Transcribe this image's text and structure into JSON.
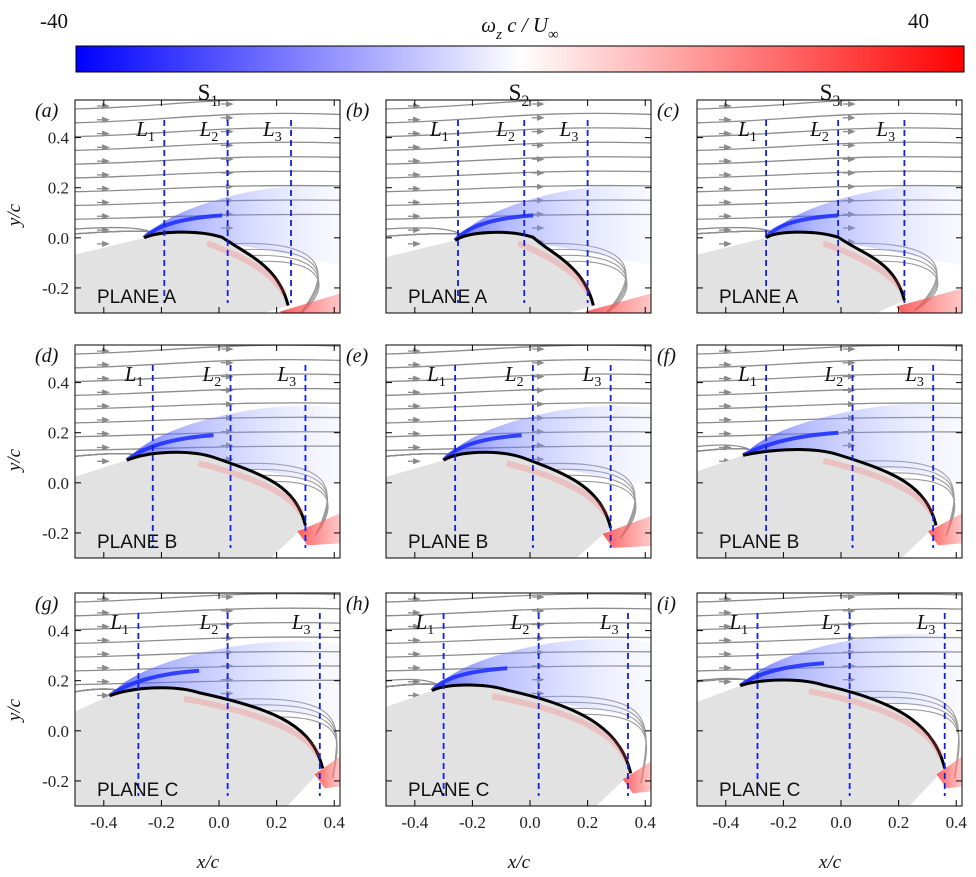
{
  "colorbar": {
    "min_label": "-40",
    "max_label": "40",
    "title_parts": {
      "omega": "ω",
      "z": "z",
      "mid": " c / U",
      "inf": "∞"
    },
    "range": [
      -40,
      40
    ],
    "colors": {
      "low": "#0000ff",
      "mid": "#ffffff",
      "high": "#ff0000"
    }
  },
  "columns": [
    {
      "main": "S",
      "sub": "1"
    },
    {
      "main": "S",
      "sub": "2"
    },
    {
      "main": "S",
      "sub": "3"
    }
  ],
  "axes": {
    "xlabel": "x/c",
    "ylabel": "y/c",
    "xlim": [
      -0.5,
      0.42
    ],
    "ylim": [
      -0.3,
      0.55
    ],
    "xticks": [
      "-0.4",
      "-0.2",
      "0.0",
      "0.2",
      "0.4"
    ],
    "xtick_values": [
      -0.4,
      -0.2,
      0.0,
      0.2,
      0.4
    ],
    "yticks": [
      "0.4",
      "0.2",
      "0.0",
      "-0.2"
    ],
    "ytick_values": [
      0.4,
      0.2,
      0.0,
      -0.2
    ]
  },
  "line_labels": [
    "L",
    "L",
    "L"
  ],
  "line_subs": [
    "1",
    "2",
    "3"
  ],
  "chart_data": {
    "type": "contour-streamline",
    "variable": "vorticity",
    "panels": [
      {
        "label": "(a)",
        "plane": "PLANE A",
        "column": 0,
        "row": 0,
        "lines_x": [
          -0.19,
          0.03,
          0.25
        ],
        "le": [
          -0.26,
          0.0
        ],
        "peak": [
          -0.18,
          0.01
        ],
        "te": [
          0.24,
          -0.27
        ]
      },
      {
        "label": "(b)",
        "plane": "PLANE A",
        "column": 1,
        "row": 0,
        "lines_x": [
          -0.25,
          -0.02,
          0.2
        ],
        "le": [
          -0.26,
          -0.01
        ],
        "peak": [
          -0.18,
          0.01
        ],
        "te": [
          0.22,
          -0.27
        ]
      },
      {
        "label": "(c)",
        "plane": "PLANE A",
        "column": 2,
        "row": 0,
        "lines_x": [
          -0.26,
          -0.01,
          0.22
        ],
        "le": [
          -0.26,
          0.0
        ],
        "peak": [
          -0.2,
          0.01
        ],
        "te": [
          0.22,
          -0.25
        ]
      },
      {
        "label": "(d)",
        "plane": "PLANE B",
        "column": 0,
        "row": 1,
        "lines_x": [
          -0.23,
          0.04,
          0.3
        ],
        "le": [
          -0.32,
          0.09
        ],
        "peak": [
          -0.21,
          0.11
        ],
        "te": [
          0.3,
          -0.17
        ]
      },
      {
        "label": "(e)",
        "plane": "PLANE B",
        "column": 1,
        "row": 1,
        "lines_x": [
          -0.26,
          0.01,
          0.28
        ],
        "le": [
          -0.3,
          0.09
        ],
        "peak": [
          -0.22,
          0.11
        ],
        "te": [
          0.28,
          -0.18
        ]
      },
      {
        "label": "(f)",
        "plane": "PLANE B",
        "column": 2,
        "row": 1,
        "lines_x": [
          -0.26,
          0.04,
          0.32
        ],
        "le": [
          -0.34,
          0.11
        ],
        "peak": [
          -0.2,
          0.12
        ],
        "te": [
          0.33,
          -0.17
        ]
      },
      {
        "label": "(g)",
        "plane": "PLANE C",
        "column": 0,
        "row": 2,
        "lines_x": [
          -0.28,
          0.03,
          0.35
        ],
        "le": [
          -0.38,
          0.14
        ],
        "peak": [
          -0.26,
          0.16
        ],
        "te": [
          0.36,
          -0.15
        ]
      },
      {
        "label": "(h)",
        "plane": "PLANE C",
        "column": 1,
        "row": 2,
        "lines_x": [
          -0.3,
          0.03,
          0.34
        ],
        "le": [
          -0.34,
          0.16
        ],
        "peak": [
          -0.27,
          0.17
        ],
        "te": [
          0.35,
          -0.17
        ]
      },
      {
        "label": "(i)",
        "plane": "PLANE C",
        "column": 2,
        "row": 2,
        "lines_x": [
          -0.29,
          0.03,
          0.36
        ],
        "le": [
          -0.35,
          0.18
        ],
        "peak": [
          -0.25,
          0.19
        ],
        "te": [
          0.36,
          -0.15
        ]
      }
    ]
  }
}
